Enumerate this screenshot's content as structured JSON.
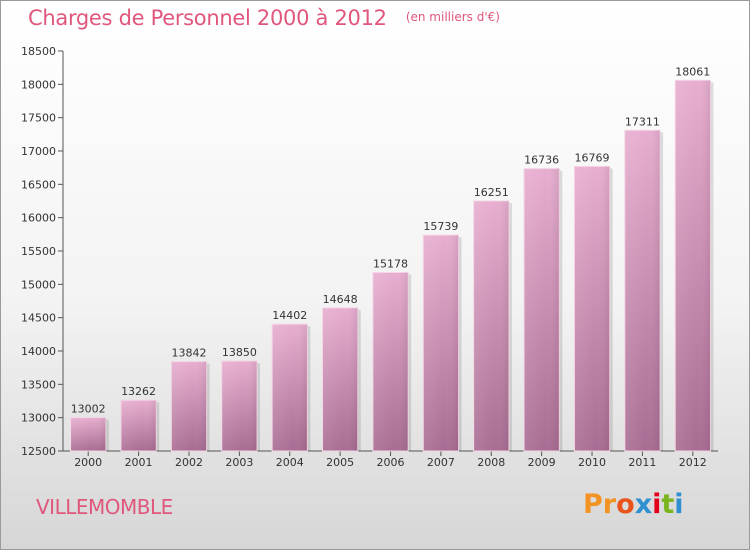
{
  "header": {
    "title": "Charges de Personnel 2000 à 2012",
    "subtitle": "(en milliers d'€)"
  },
  "footer": {
    "city": "VILLEMOMBLE",
    "logo": "Proxiti"
  },
  "colors": {
    "accent": "#e0577c",
    "bar_top": "#e8aed0",
    "bar_bottom": "#a86c92",
    "logo_letters": [
      "#f39323",
      "#f39323",
      "#e9541c",
      "#2e8fd1",
      "#e2001a",
      "#7ab51d",
      "#2e8fd1"
    ]
  },
  "chart_data": {
    "type": "bar",
    "title": "Charges de Personnel 2000 à 2012",
    "subtitle": "(en milliers d'€)",
    "categories": [
      "2000",
      "2001",
      "2002",
      "2003",
      "2004",
      "2005",
      "2006",
      "2007",
      "2008",
      "2009",
      "2010",
      "2011",
      "2012"
    ],
    "values": [
      13002,
      13262,
      13842,
      13850,
      14402,
      14648,
      15178,
      15739,
      16251,
      16736,
      16769,
      17311,
      18061
    ],
    "ylim": [
      12500,
      18500
    ],
    "yticks": [
      12500,
      13000,
      13500,
      14000,
      14500,
      15000,
      15500,
      16000,
      16500,
      17000,
      17500,
      18000,
      18500
    ],
    "grid": false,
    "legend": "none"
  }
}
